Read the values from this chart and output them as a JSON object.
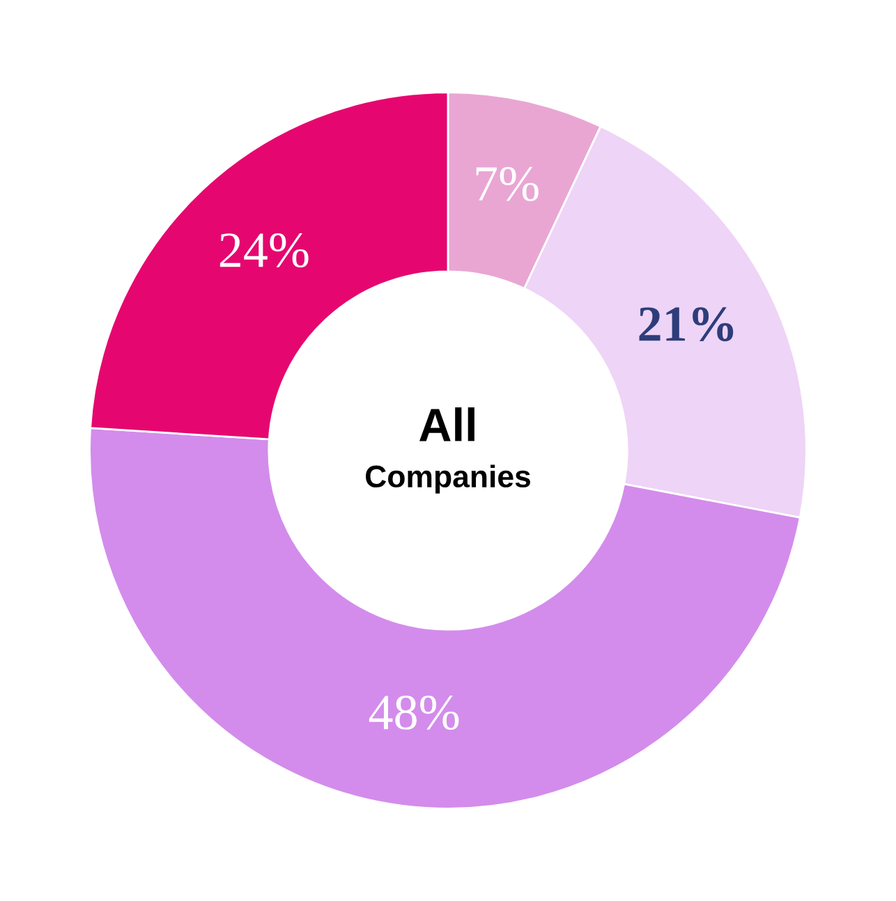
{
  "chart_data": {
    "type": "donut",
    "title": "All",
    "subtitle": "Companies",
    "categories": [
      null,
      null,
      null,
      null
    ],
    "values": [
      7,
      21,
      48,
      24
    ],
    "colors": [
      "#e9a6d3",
      "#eed4f6",
      "#d38ceb",
      "#e5076f"
    ],
    "value_labels": [
      "7%",
      "21%",
      "48%",
      "24%"
    ]
  }
}
